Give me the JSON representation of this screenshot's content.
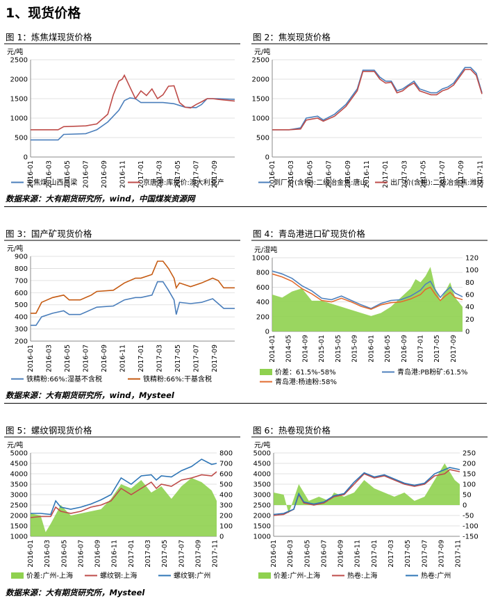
{
  "section_title": "1、现货价格",
  "sources": [
    "数据来源：大有期货研究所，wind，中国煤炭资源网",
    "数据来源：大有期货研究所，wind，Mysteel",
    "数据来源：大有期货研究所，Mysteel"
  ],
  "chart_data": [
    {
      "id": "fig1",
      "type": "line",
      "title": "图 1：炼焦煤现货价格",
      "yunit": "元/吨",
      "ylim": [
        0,
        2500
      ],
      "yticks": [
        0,
        500,
        1000,
        1500,
        2000,
        2500
      ],
      "x_start": 2016.0,
      "x_end": 2017.85,
      "xticks": [
        "2016-01",
        "2016-03",
        "2016-05",
        "2016-07",
        "2016-09",
        "2016-11",
        "2017-01",
        "2017-03",
        "2017-05",
        "2017-07",
        "2017-09"
      ],
      "series": [
        {
          "name": "主焦煤:山西吕梁",
          "color": "#4a7ebb",
          "x": [
            2016.0,
            2016.25,
            2016.3,
            2016.5,
            2016.6,
            2016.7,
            2016.8,
            2016.85,
            2016.9,
            2016.95,
            2017.0,
            2017.1,
            2017.2,
            2017.3,
            2017.4,
            2017.5,
            2017.55,
            2017.6,
            2017.65,
            2017.7,
            2017.85
          ],
          "y": [
            440,
            440,
            580,
            600,
            700,
            900,
            1200,
            1450,
            1520,
            1500,
            1400,
            1400,
            1400,
            1370,
            1280,
            1270,
            1350,
            1500,
            1500,
            1500,
            1480
          ]
        },
        {
          "name": "京唐港:库提价:澳大利亚产",
          "color": "#be4b48",
          "x": [
            2016.0,
            2016.25,
            2016.3,
            2016.5,
            2016.6,
            2016.7,
            2016.75,
            2016.8,
            2016.83,
            2016.85,
            2016.9,
            2016.95,
            2017.0,
            2017.05,
            2017.1,
            2017.15,
            2017.2,
            2017.25,
            2017.3,
            2017.35,
            2017.4,
            2017.45,
            2017.5,
            2017.55,
            2017.6,
            2017.65,
            2017.7,
            2017.85
          ],
          "y": [
            700,
            700,
            780,
            800,
            850,
            1100,
            1600,
            1950,
            2000,
            2100,
            1800,
            1500,
            1700,
            1580,
            1750,
            1500,
            1600,
            1820,
            1830,
            1400,
            1280,
            1260,
            1350,
            1420,
            1500,
            1500,
            1480,
            1440
          ]
        }
      ]
    },
    {
      "id": "fig2",
      "type": "line",
      "title": "图 2：焦炭现货价格",
      "yunit": "元/吨",
      "ylim": [
        0,
        2500
      ],
      "yticks": [
        0,
        500,
        1000,
        1500,
        2000,
        2500
      ],
      "x_start": 2016.0,
      "x_end": 2017.85,
      "xticks": [
        "2016-01",
        "2016-03",
        "2016-05",
        "2016-07",
        "2016-09",
        "2016-11",
        "2017-01",
        "2017-03",
        "2017-05",
        "2017-07",
        "2017-09",
        "2017-11"
      ],
      "series": [
        {
          "name": "到厂价(含税):二级冶金焦:唐山",
          "color": "#4a7ebb",
          "x": [
            2016.0,
            2016.15,
            2016.25,
            2016.3,
            2016.4,
            2016.45,
            2016.55,
            2016.65,
            2016.75,
            2016.8,
            2016.9,
            2016.95,
            2017.0,
            2017.05,
            2017.1,
            2017.15,
            2017.2,
            2017.25,
            2017.3,
            2017.35,
            2017.4,
            2017.45,
            2017.5,
            2017.55,
            2017.6,
            2017.65,
            2017.7,
            2017.75,
            2017.8,
            2017.85
          ],
          "y": [
            700,
            700,
            750,
            1000,
            1050,
            950,
            1100,
            1350,
            1750,
            2230,
            2230,
            2050,
            1950,
            1950,
            1700,
            1750,
            1850,
            1950,
            1750,
            1700,
            1650,
            1650,
            1750,
            1800,
            1900,
            2100,
            2300,
            2300,
            2150,
            1650
          ]
        },
        {
          "name": "出厂价(含税):二级冶金焦:潍坊",
          "color": "#be4b48",
          "x": [
            2016.0,
            2016.15,
            2016.25,
            2016.3,
            2016.4,
            2016.45,
            2016.55,
            2016.65,
            2016.75,
            2016.8,
            2016.9,
            2016.95,
            2017.0,
            2017.05,
            2017.1,
            2017.15,
            2017.2,
            2017.25,
            2017.3,
            2017.35,
            2017.4,
            2017.45,
            2017.5,
            2017.55,
            2017.6,
            2017.65,
            2017.7,
            2017.75,
            2017.8,
            2017.85
          ],
          "y": [
            700,
            700,
            720,
            950,
            1000,
            920,
            1050,
            1300,
            1700,
            2200,
            2200,
            2000,
            1900,
            1920,
            1650,
            1700,
            1820,
            1900,
            1700,
            1650,
            1600,
            1600,
            1700,
            1750,
            1850,
            2050,
            2250,
            2250,
            2100,
            1620
          ]
        }
      ]
    },
    {
      "id": "fig3",
      "type": "line",
      "title": "图 3：国产矿现货价格",
      "yunit": "元/吨",
      "ylim": [
        200,
        900
      ],
      "yticks": [
        200,
        300,
        400,
        500,
        600,
        700,
        800,
        900
      ],
      "x_start": 2016.0,
      "x_end": 2017.85,
      "xticks": [
        "2016-01",
        "2016-03",
        "2016-05",
        "2016-07",
        "2016-09",
        "2016-11",
        "2017-01",
        "2017-03",
        "2017-05",
        "2017-07",
        "2017-09"
      ],
      "series": [
        {
          "name": "铁精粉:66%:湿基不含税",
          "color": "#4a7ebb",
          "x": [
            2016.0,
            2016.05,
            2016.1,
            2016.2,
            2016.3,
            2016.35,
            2016.45,
            2016.55,
            2016.6,
            2016.75,
            2016.85,
            2016.95,
            2017.0,
            2017.1,
            2017.15,
            2017.2,
            2017.25,
            2017.3,
            2017.32,
            2017.35,
            2017.45,
            2017.55,
            2017.65,
            2017.7,
            2017.75,
            2017.85
          ],
          "y": [
            330,
            330,
            400,
            430,
            450,
            420,
            420,
            460,
            480,
            490,
            540,
            560,
            560,
            580,
            690,
            690,
            620,
            540,
            420,
            520,
            510,
            520,
            550,
            510,
            470,
            470
          ]
        },
        {
          "name": "铁精粉:66%:干基含税",
          "color": "#c55a11",
          "x": [
            2016.0,
            2016.05,
            2016.1,
            2016.2,
            2016.3,
            2016.35,
            2016.45,
            2016.55,
            2016.6,
            2016.75,
            2016.85,
            2016.95,
            2017.0,
            2017.1,
            2017.15,
            2017.2,
            2017.25,
            2017.3,
            2017.32,
            2017.35,
            2017.45,
            2017.55,
            2017.65,
            2017.7,
            2017.75,
            2017.85
          ],
          "y": [
            430,
            430,
            520,
            560,
            580,
            540,
            540,
            580,
            610,
            620,
            680,
            720,
            720,
            750,
            860,
            860,
            800,
            720,
            640,
            680,
            650,
            680,
            720,
            700,
            640,
            640
          ]
        }
      ]
    },
    {
      "id": "fig4",
      "type": "line",
      "title": "图 4：青岛港进口矿现货价格",
      "yunit": "元/湿吨",
      "ylim": [
        0,
        1000
      ],
      "yticks": [
        0,
        200,
        400,
        600,
        800,
        1000
      ],
      "y2lim": [
        0,
        120
      ],
      "y2ticks": [
        0,
        20,
        40,
        60,
        80,
        100,
        120
      ],
      "x_start": 2014.0,
      "x_end": 2017.85,
      "xticks": [
        "2014-01",
        "2014-05",
        "2014-09",
        "2015-01",
        "2015-05",
        "2015-09",
        "2016-01",
        "2016-05",
        "2016-09",
        "2017-01",
        "2017-05",
        "2017-09"
      ],
      "area_series": {
        "name": "价差：61.5%-58%",
        "color": "#8fd14f",
        "x": [
          2014.0,
          2014.2,
          2014.4,
          2014.6,
          2014.8,
          2015.0,
          2015.2,
          2015.4,
          2015.6,
          2015.8,
          2016.0,
          2016.2,
          2016.4,
          2016.6,
          2016.8,
          2016.9,
          2017.0,
          2017.1,
          2017.2,
          2017.3,
          2017.4,
          2017.5,
          2017.6,
          2017.7,
          2017.85
        ],
        "y": [
          60,
          55,
          65,
          70,
          50,
          50,
          45,
          40,
          35,
          30,
          25,
          30,
          40,
          55,
          70,
          85,
          80,
          90,
          105,
          70,
          50,
          65,
          80,
          55,
          40
        ]
      },
      "series": [
        {
          "name": "青岛港:PB粉矿:61.5%",
          "color": "#4f81bd",
          "x": [
            2014.0,
            2014.2,
            2014.4,
            2014.6,
            2014.8,
            2015.0,
            2015.2,
            2015.4,
            2015.6,
            2015.8,
            2016.0,
            2016.2,
            2016.4,
            2016.6,
            2016.8,
            2016.9,
            2017.0,
            2017.1,
            2017.2,
            2017.3,
            2017.4,
            2017.5,
            2017.6,
            2017.7,
            2017.85
          ],
          "y": [
            820,
            780,
            720,
            620,
            550,
            450,
            430,
            480,
            420,
            360,
            310,
            380,
            420,
            430,
            480,
            520,
            560,
            640,
            680,
            560,
            460,
            540,
            600,
            520,
            470
          ]
        },
        {
          "name": "青岛港:杨迪粉:58%",
          "color": "#e26b2e",
          "x": [
            2014.0,
            2014.2,
            2014.4,
            2014.6,
            2014.8,
            2015.0,
            2015.2,
            2015.4,
            2015.6,
            2015.8,
            2016.0,
            2016.2,
            2016.4,
            2016.6,
            2016.8,
            2016.9,
            2017.0,
            2017.1,
            2017.2,
            2017.3,
            2017.4,
            2017.5,
            2017.6,
            2017.7,
            2017.85
          ],
          "y": [
            780,
            740,
            680,
            580,
            510,
            420,
            400,
            450,
            400,
            340,
            300,
            360,
            390,
            400,
            440,
            470,
            500,
            570,
            600,
            500,
            420,
            480,
            530,
            460,
            430
          ]
        }
      ]
    },
    {
      "id": "fig5",
      "type": "line",
      "title": "图 5：螺纹钢现货价格",
      "yunit": "元/吨",
      "ylim": [
        1000,
        5000
      ],
      "yticks": [
        1000,
        1500,
        2000,
        2500,
        3000,
        3500,
        4000,
        4500,
        5000
      ],
      "y2lim": [
        0,
        800
      ],
      "y2ticks": [
        0,
        100,
        200,
        300,
        400,
        500,
        600,
        700,
        800
      ],
      "x_start": 2016.0,
      "x_end": 2017.85,
      "xticks": [
        "2016-01",
        "2016-03",
        "2016-05",
        "2016-07",
        "2016-09",
        "2016-11",
        "2017-01",
        "2017-03",
        "2017-05",
        "2017-07",
        "2017-09",
        "2017-11"
      ],
      "area_series": {
        "name": "价差:广州-上海",
        "color": "#8fd14f",
        "x": [
          2016.0,
          2016.1,
          2016.15,
          2016.2,
          2016.3,
          2016.4,
          2016.5,
          2016.6,
          2016.7,
          2016.8,
          2016.9,
          2017.0,
          2017.1,
          2017.2,
          2017.3,
          2017.4,
          2017.5,
          2017.6,
          2017.7,
          2017.8,
          2017.85
        ],
        "y": [
          220,
          200,
          40,
          120,
          300,
          200,
          220,
          240,
          260,
          360,
          500,
          460,
          540,
          420,
          480,
          360,
          480,
          560,
          520,
          440,
          340
        ]
      },
      "series": [
        {
          "name": "螺纹钢:上海",
          "color": "#be4b48",
          "x": [
            2016.0,
            2016.1,
            2016.2,
            2016.25,
            2016.3,
            2016.4,
            2016.5,
            2016.6,
            2016.7,
            2016.8,
            2016.9,
            2017.0,
            2017.1,
            2017.2,
            2017.25,
            2017.3,
            2017.4,
            2017.5,
            2017.6,
            2017.7,
            2017.8,
            2017.85
          ],
          "y": [
            1900,
            1950,
            1950,
            2400,
            2200,
            2100,
            2200,
            2400,
            2500,
            2700,
            3300,
            3000,
            3300,
            3600,
            3300,
            3500,
            3400,
            3700,
            3800,
            3950,
            3900,
            4100
          ]
        },
        {
          "name": "螺纹钢:广州",
          "color": "#2e75b6",
          "x": [
            2016.0,
            2016.1,
            2016.2,
            2016.25,
            2016.3,
            2016.4,
            2016.5,
            2016.6,
            2016.7,
            2016.8,
            2016.9,
            2017.0,
            2017.1,
            2017.2,
            2017.25,
            2017.3,
            2017.4,
            2017.5,
            2017.6,
            2017.7,
            2017.8,
            2017.85
          ],
          "y": [
            2100,
            2100,
            2050,
            2700,
            2400,
            2300,
            2400,
            2550,
            2750,
            3000,
            3800,
            3500,
            3900,
            3950,
            3700,
            3900,
            3850,
            4150,
            4350,
            4700,
            4450,
            4500
          ]
        }
      ]
    },
    {
      "id": "fig6",
      "type": "line",
      "title": "图 6：热卷现货价格",
      "yunit": "元/吨",
      "ylim": [
        1000,
        5000
      ],
      "yticks": [
        1000,
        1500,
        2000,
        2500,
        3000,
        3500,
        4000,
        4500,
        5000
      ],
      "y2lim": [
        -150,
        250
      ],
      "y2ticks": [
        -150,
        -100,
        -50,
        0,
        50,
        100,
        150,
        200,
        250
      ],
      "x_start": 2016.0,
      "x_end": 2017.85,
      "xticks": [
        "2016-01",
        "2016-03",
        "2016-05",
        "2016-07",
        "2016-09",
        "2016-11",
        "2017-01",
        "2017-03",
        "2017-05",
        "2017-07",
        "2017-09",
        "2017-11"
      ],
      "area_series": {
        "name": "价差:广州-上海",
        "color": "#8fd14f",
        "x": [
          2016.0,
          2016.1,
          2016.15,
          2016.2,
          2016.25,
          2016.35,
          2016.45,
          2016.55,
          2016.6,
          2016.7,
          2016.8,
          2016.9,
          2017.0,
          2017.1,
          2017.2,
          2017.3,
          2017.4,
          2017.5,
          2017.6,
          2017.7,
          2017.8,
          2017.85
        ],
        "y": [
          60,
          50,
          -40,
          30,
          100,
          20,
          40,
          20,
          60,
          40,
          60,
          120,
          80,
          60,
          40,
          60,
          20,
          40,
          120,
          200,
          120,
          100
        ]
      },
      "series": [
        {
          "name": "热卷:上海",
          "color": "#be4b48",
          "x": [
            2016.0,
            2016.1,
            2016.2,
            2016.25,
            2016.3,
            2016.4,
            2016.5,
            2016.6,
            2016.7,
            2016.8,
            2016.9,
            2017.0,
            2017.1,
            2017.2,
            2017.3,
            2017.4,
            2017.5,
            2017.6,
            2017.7,
            2017.75,
            2017.85
          ],
          "y": [
            2000,
            2050,
            2300,
            3000,
            2600,
            2500,
            2600,
            2900,
            3000,
            3500,
            4000,
            3800,
            3900,
            3700,
            3500,
            3400,
            3500,
            3900,
            4000,
            4200,
            4100
          ]
        },
        {
          "name": "热卷:广州",
          "color": "#2e75b6",
          "x": [
            2016.0,
            2016.1,
            2016.2,
            2016.25,
            2016.3,
            2016.4,
            2016.5,
            2016.6,
            2016.7,
            2016.8,
            2016.9,
            2017.0,
            2017.1,
            2017.2,
            2017.3,
            2017.4,
            2017.5,
            2017.6,
            2017.7,
            2017.75,
            2017.85
          ],
          "y": [
            2050,
            2100,
            2300,
            3050,
            2650,
            2550,
            2650,
            2950,
            3050,
            3600,
            4050,
            3850,
            3950,
            3750,
            3550,
            3450,
            3550,
            4000,
            4200,
            4300,
            4200
          ]
        }
      ]
    }
  ]
}
